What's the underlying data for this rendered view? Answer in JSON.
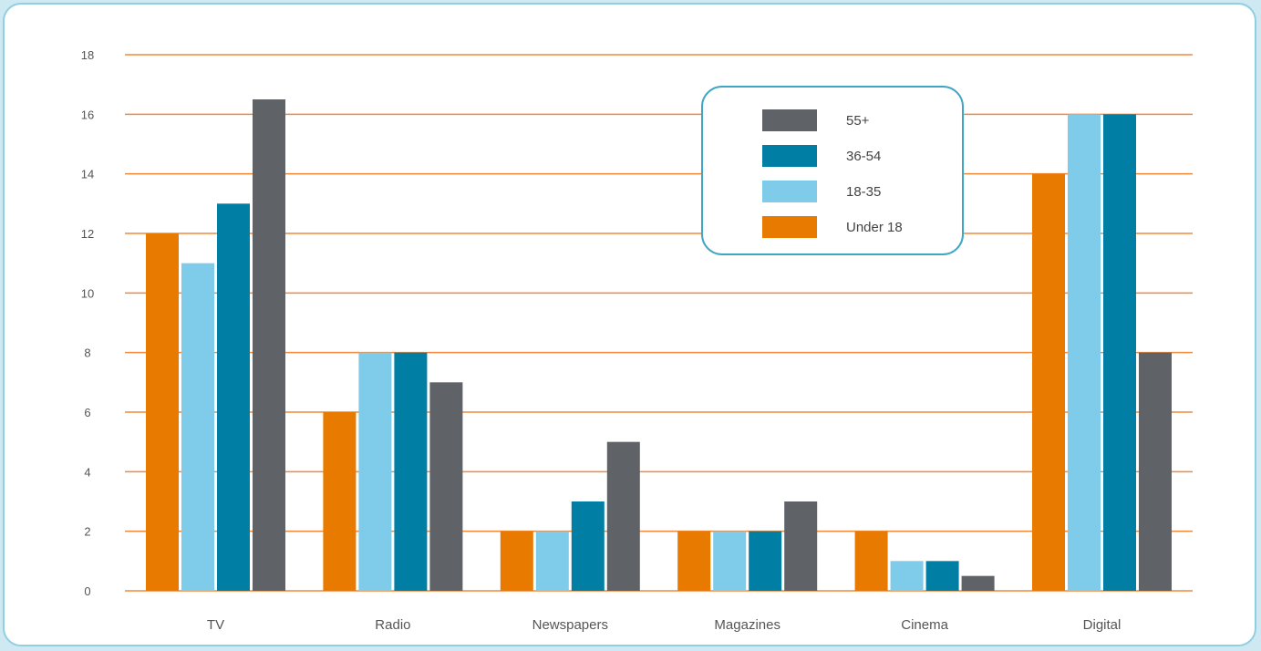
{
  "chart_data": {
    "type": "bar",
    "categories": [
      "TV",
      "Radio",
      "Newspapers",
      "Magazines",
      "Cinema",
      "Digital"
    ],
    "series": [
      {
        "name": "Under 18",
        "color": "#e87a00",
        "values": [
          12,
          6,
          2,
          2,
          2,
          14
        ]
      },
      {
        "name": "18-35",
        "color": "#7fcbea",
        "values": [
          11,
          8,
          2,
          2,
          1,
          16
        ]
      },
      {
        "name": "36-54",
        "color": "#007ea3",
        "values": [
          13,
          8,
          3,
          2,
          1,
          16
        ]
      },
      {
        "name": "55+",
        "color": "#5f6368",
        "values": [
          16.5,
          7,
          5,
          3,
          0.5,
          8
        ]
      }
    ],
    "yticks": [
      0,
      2,
      4,
      6,
      8,
      10,
      12,
      14,
      16,
      18
    ],
    "ylim": [
      0,
      18
    ],
    "grid": true,
    "grid_color": "#f0893a",
    "legend_position": "top-center",
    "legend_order": [
      "55+",
      "36-54",
      "18-35",
      "Under 18"
    ],
    "title": "",
    "xlabel": "",
    "ylabel": ""
  }
}
